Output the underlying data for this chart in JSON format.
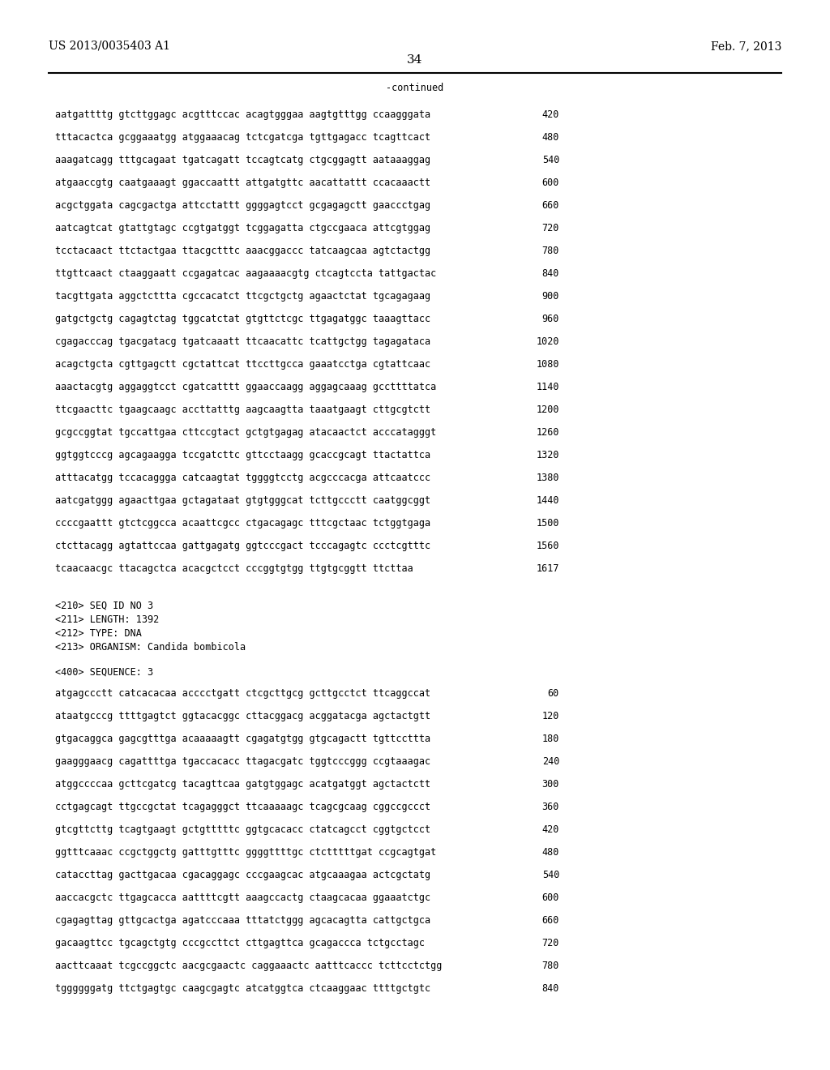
{
  "header_left": "US 2013/0035403 A1",
  "header_right": "Feb. 7, 2013",
  "page_number": "34",
  "continued_label": "-continued",
  "background_color": "#ffffff",
  "text_color": "#000000",
  "font_size_header": 10,
  "font_size_body": 8.5,
  "font_size_page": 11,
  "sequence_lines_top": [
    [
      "aatgattttg gtcttggagc acgtttccac acagtgggaa aagtgtttgg ccaagggata",
      "420"
    ],
    [
      "tttacactca gcggaaatgg atggaaacag tctcgatcga tgttgagacc tcagttcact",
      "480"
    ],
    [
      "aaagatcagg tttgcagaat tgatcagatt tccagtcatg ctgcggagtt aataaaggag",
      "540"
    ],
    [
      "atgaaccgtg caatgaaagt ggaccaattt attgatgttc aacattattt ccacaaactt",
      "600"
    ],
    [
      "acgctggata cagcgactga attcctattt ggggagtcct gcgagagctt gaaccctgag",
      "660"
    ],
    [
      "aatcagtcat gtattgtagc ccgtgatggt tcggagatta ctgccgaaca attcgtggag",
      "720"
    ],
    [
      "tcctacaact ttctactgaa ttacgctttc aaacggaccc tatcaagcaa agtctactgg",
      "780"
    ],
    [
      "ttgttcaact ctaaggaatt ccgagatcac aagaaaacgtg ctcagtccta tattgactac",
      "840"
    ],
    [
      "tacgttgata aggctcttta cgccacatct ttcgctgctg agaactctat tgcagagaag",
      "900"
    ],
    [
      "gatgctgctg cagagtctag tggcatctat gtgttctcgc ttgagatggc taaagttacc",
      "960"
    ],
    [
      "cgagacccag tgacgatacg tgatcaaatt ttcaacattc tcattgctgg tagagataca",
      "1020"
    ],
    [
      "acagctgcta cgttgagctt cgctattcat ttccttgcca gaaatcctga cgtattcaac",
      "1080"
    ],
    [
      "aaactacgtg aggaggtcct cgatcatttt ggaaccaagg aggagcaaag gccttttatca",
      "1140"
    ],
    [
      "ttcgaacttc tgaagcaagc accttatttg aagcaagtta taaatgaagt cttgcgtctt",
      "1200"
    ],
    [
      "gcgccggtat tgccattgaa cttccgtact gctgtgagag atacaactct acccatagggt",
      "1260"
    ],
    [
      "ggtggtcccg agcagaagga tccgatcttc gttcctaagg gcaccgcagt ttactattca",
      "1320"
    ],
    [
      "atttacatgg tccacaggga catcaagtat tggggtcctg acgcccacga attcaatccc",
      "1380"
    ],
    [
      "aatcgatggg agaacttgaa gctagataat gtgtgggcat tcttgccctt caatggcggt",
      "1440"
    ],
    [
      "ccccgaattt gtctcggcca acaattcgcc ctgacagagc tttcgctaac tctggtgaga",
      "1500"
    ],
    [
      "ctcttacagg agtattccaa gattgagatg ggtcccgact tcccagagtc ccctcgtttc",
      "1560"
    ],
    [
      "tcaacaacgc ttacagctca acacgctcct cccggtgtgg ttgtgcggtt ttcttaa",
      "1617"
    ]
  ],
  "metadata_lines": [
    "<210> SEQ ID NO 3",
    "<211> LENGTH: 1392",
    "<212> TYPE: DNA",
    "<213> ORGANISM: Candida bombicola"
  ],
  "sequence_label": "<400> SEQUENCE: 3",
  "sequence_lines_bottom": [
    [
      "atgagccctt catcacacaa acccctgatt ctcgcttgcg gcttgcctct ttcaggccat",
      "60"
    ],
    [
      "ataatgcccg ttttgagtct ggtacacggc cttacggacg acggatacga agctactgtt",
      "120"
    ],
    [
      "gtgacaggca gagcgtttga acaaaaagtt cgagatgtgg gtgcagactt tgttccttta",
      "180"
    ],
    [
      "gaagggaacg cagattttga tgaccacacc ttagacgatc tggtcccggg ccgtaaagac",
      "240"
    ],
    [
      "atggccccaa gcttcgatcg tacagttcaa gatgtggagc acatgatggt agctactctt",
      "300"
    ],
    [
      "cctgagcagt ttgccgctat tcagagggct ttcaaaaagc tcagcgcaag cggccgccct",
      "360"
    ],
    [
      "gtcgttcttg tcagtgaagt gctgtttttc ggtgcacacc ctatcagcct cggtgctcct",
      "420"
    ],
    [
      "ggtttcaaac ccgctggctg gatttgtttc ggggttttgc ctctttttgat ccgcagtgat",
      "480"
    ],
    [
      "cataccttag gacttgacaa cgacaggagc cccgaagcac atgcaaagaa actcgctatg",
      "540"
    ],
    [
      "aaccacgctc ttgagcacca aattttcgtt aaagccactg ctaagcacaa ggaaatctgc",
      "600"
    ],
    [
      "cgagagttag gttgcactga agatcccaaa tttatctggg agcacagtta cattgctgca",
      "660"
    ],
    [
      "gacaagttcc tgcagctgtg cccgccttct cttgagttca gcagaccca tctgcctagc",
      "720"
    ],
    [
      "aacttcaaat tcgccggctc aacgcgaactc caggaaactc aatttcaccc tcttcctctgg",
      "780"
    ],
    [
      "tggggggatg ttctgagtgc caagcgagtc atcatggtca ctcaaggaac ttttgctgtc",
      "840"
    ]
  ]
}
